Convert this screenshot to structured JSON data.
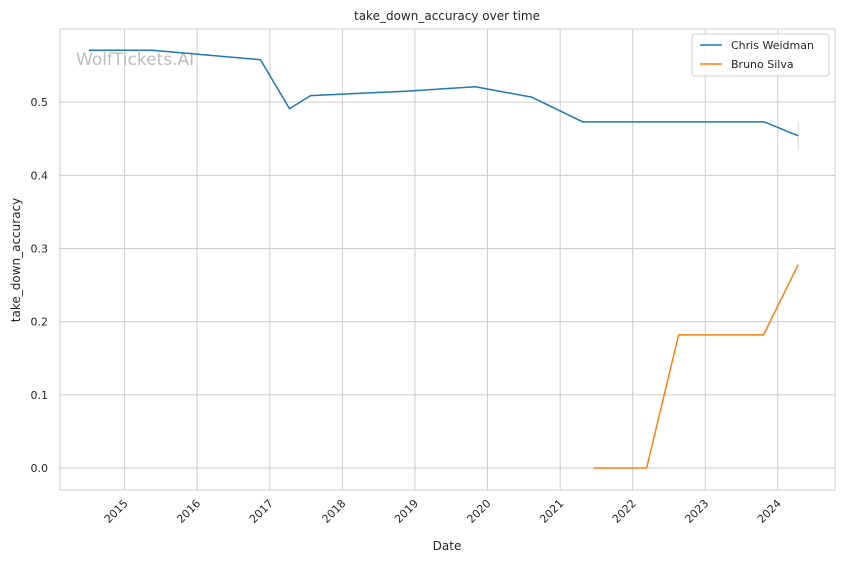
{
  "watermark": "WolfTickets.AI",
  "chart_data": {
    "type": "line",
    "title": "take_down_accuracy over time",
    "xlabel": "Date",
    "ylabel": "take_down_accuracy",
    "x_axis_type": "date",
    "xlim": [
      "2014-02-10",
      "2024-10-15"
    ],
    "ylim": [
      -0.03,
      0.6
    ],
    "x_tick_labels": [
      "2015",
      "2016",
      "2017",
      "2018",
      "2019",
      "2020",
      "2021",
      "2022",
      "2023",
      "2024"
    ],
    "y_tick_labels": [
      "0.0",
      "0.1",
      "0.2",
      "0.3",
      "0.4",
      "0.5"
    ],
    "y_ticks": [
      0.0,
      0.1,
      0.2,
      0.3,
      0.4,
      0.5
    ],
    "grid": true,
    "legend_position": "top-right",
    "series": [
      {
        "name": "Chris Weidman",
        "color": "#1f77b4",
        "points": [
          {
            "x": "2014-07-05",
            "y": 0.571
          },
          {
            "x": "2015-05-20",
            "y": 0.571
          },
          {
            "x": "2016-11-15",
            "y": 0.558
          },
          {
            "x": "2017-04-10",
            "y": 0.491
          },
          {
            "x": "2017-07-25",
            "y": 0.509
          },
          {
            "x": "2018-11-15",
            "y": 0.515
          },
          {
            "x": "2019-11-01",
            "y": 0.521
          },
          {
            "x": "2020-08-10",
            "y": 0.507
          },
          {
            "x": "2021-04-25",
            "y": 0.473
          },
          {
            "x": "2023-10-25",
            "y": 0.473
          },
          {
            "x": "2024-04-13",
            "y": 0.454
          }
        ]
      },
      {
        "name": "Bruno Silva",
        "color": "#ff7f0e",
        "points": [
          {
            "x": "2021-06-19",
            "y": 0.0
          },
          {
            "x": "2022-03-12",
            "y": 0.0
          },
          {
            "x": "2022-08-20",
            "y": 0.182
          },
          {
            "x": "2023-10-21",
            "y": 0.182
          },
          {
            "x": "2024-04-13",
            "y": 0.278
          }
        ]
      }
    ],
    "error_bar": {
      "series": "Chris Weidman",
      "x": "2024-04-13",
      "low": 0.434,
      "high": 0.474
    }
  }
}
